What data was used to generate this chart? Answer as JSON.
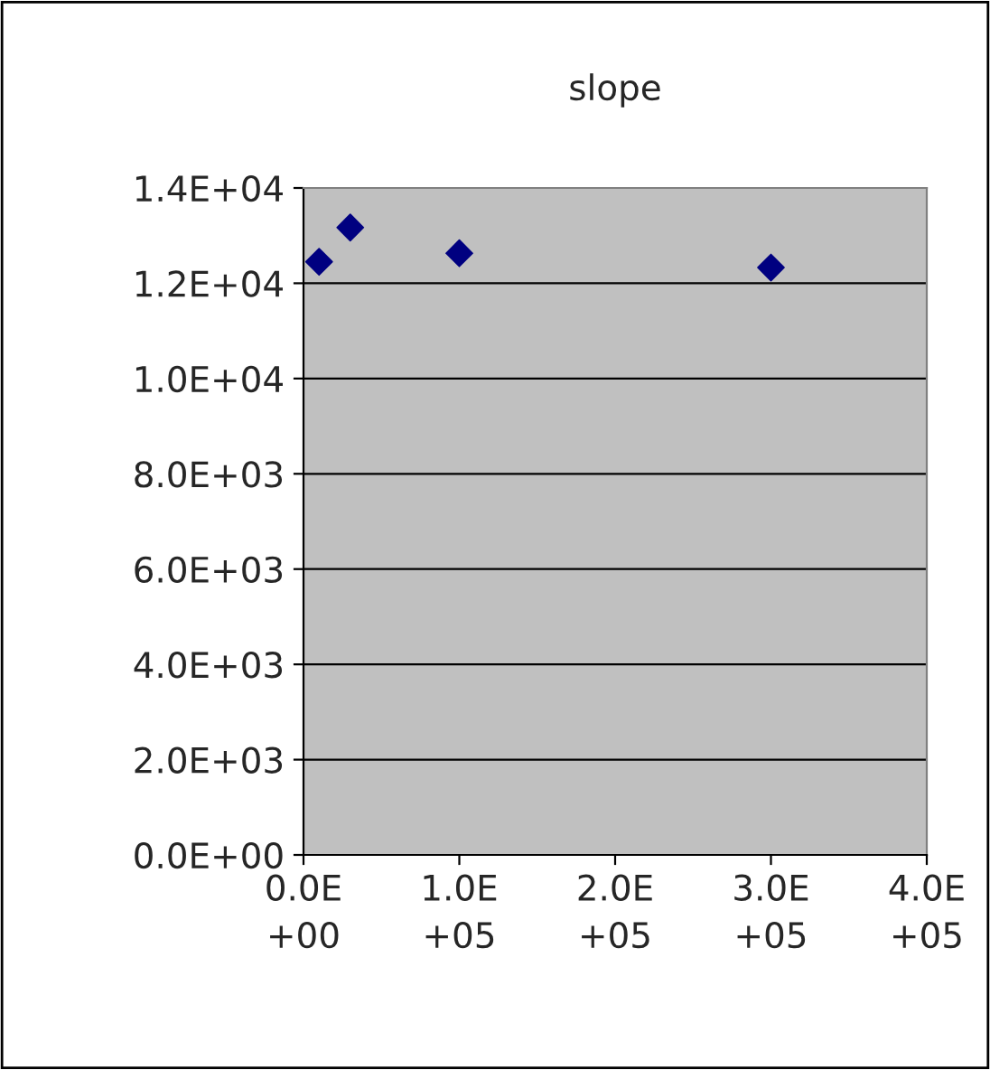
{
  "chart_data": {
    "type": "scatter",
    "title": "slope",
    "x": [
      10000,
      30000,
      100000,
      300000
    ],
    "series": [
      {
        "color": "#000080",
        "values": [
          12450,
          13170,
          12630,
          12330
        ]
      }
    ],
    "marker": "diamond",
    "grid": "y",
    "xlim": [
      0,
      400000
    ],
    "xticks": [
      {
        "value": 0,
        "label": "0.0E+00"
      },
      {
        "value": 100000,
        "label": "1.0E+05"
      },
      {
        "value": 200000,
        "label": "2.0E+05"
      },
      {
        "value": 300000,
        "label": "3.0E+05"
      },
      {
        "value": 400000,
        "label": "4.0E+05"
      }
    ],
    "ylim": [
      0,
      14000
    ],
    "yticks": [
      {
        "value": 0,
        "label": "0.0E+00"
      },
      {
        "value": 2000,
        "label": "2.0E+03"
      },
      {
        "value": 4000,
        "label": "4.0E+03"
      },
      {
        "value": 6000,
        "label": "6.0E+03"
      },
      {
        "value": 8000,
        "label": "8.0E+03"
      },
      {
        "value": 10000,
        "label": "1.0E+04"
      },
      {
        "value": 12000,
        "label": "1.2E+04"
      },
      {
        "value": 14000,
        "label": "1.4E+04"
      }
    ],
    "legend": false
  }
}
